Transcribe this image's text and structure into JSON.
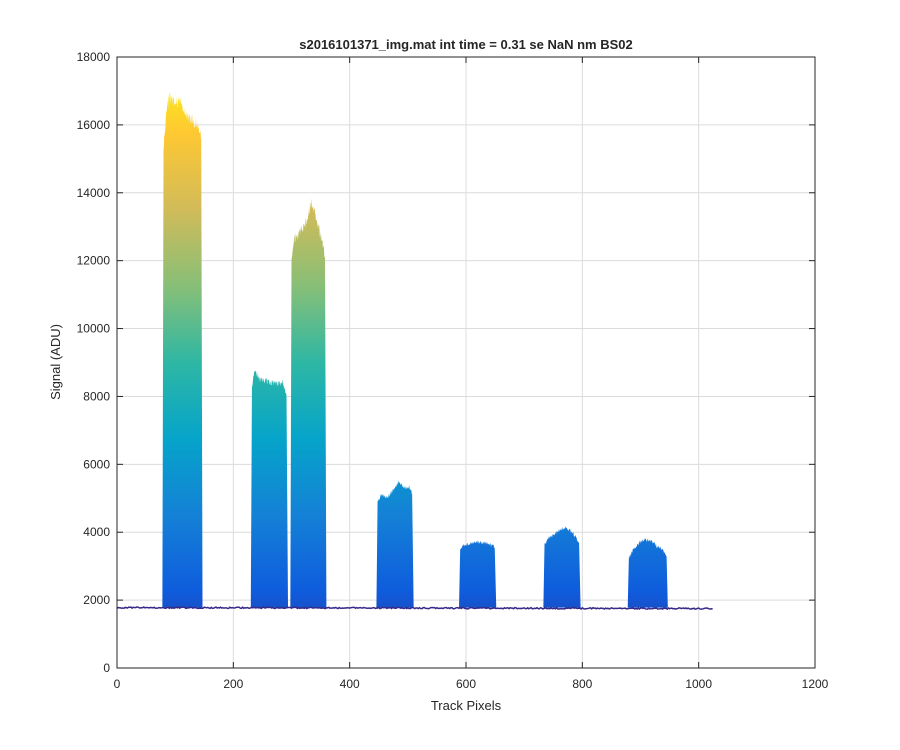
{
  "chart_data": {
    "type": "area",
    "title": "s2016101371_img.mat int time = 0.31 se  NaN nm BS02",
    "xlabel": "Track Pixels",
    "ylabel": "Signal (ADU)",
    "xlim": [
      0,
      1200
    ],
    "ylim": [
      0,
      18000
    ],
    "xticks": [
      "0",
      "200",
      "400",
      "600",
      "800",
      "1000",
      "1200"
    ],
    "yticks": [
      "0",
      "2000",
      "4000",
      "6000",
      "8000",
      "10000",
      "12000",
      "14000",
      "16000",
      "18000"
    ],
    "grid": true,
    "colormap": [
      "#352a87",
      "#0f5cdd",
      "#1481d6",
      "#06a4ca",
      "#2eb7a4",
      "#87bf77",
      "#d1bb59",
      "#fec832",
      "#f9fb0e"
    ],
    "baseline": 1780,
    "x_range": [
      0,
      1024
    ],
    "peaks": [
      {
        "x_start": 80,
        "x_end": 145,
        "max": 17100,
        "profile": [
          [
            80,
            15500
          ],
          [
            85,
            16600
          ],
          [
            90,
            17050
          ],
          [
            100,
            16850
          ],
          [
            110,
            16900
          ],
          [
            120,
            16500
          ],
          [
            130,
            16300
          ],
          [
            140,
            16200
          ],
          [
            145,
            15800
          ]
        ]
      },
      {
        "x_start": 232,
        "x_end": 292,
        "max": 9000,
        "profile": [
          [
            232,
            8300
          ],
          [
            236,
            8900
          ],
          [
            245,
            8600
          ],
          [
            255,
            8550
          ],
          [
            265,
            8500
          ],
          [
            275,
            8450
          ],
          [
            285,
            8500
          ],
          [
            292,
            8100
          ]
        ]
      },
      {
        "x_start": 300,
        "x_end": 358,
        "max": 14000,
        "profile": [
          [
            300,
            12200
          ],
          [
            305,
            12800
          ],
          [
            315,
            13000
          ],
          [
            325,
            13300
          ],
          [
            335,
            13900
          ],
          [
            345,
            13200
          ],
          [
            352,
            12800
          ],
          [
            358,
            12200
          ]
        ]
      },
      {
        "x_start": 448,
        "x_end": 508,
        "max": 5600,
        "profile": [
          [
            448,
            5000
          ],
          [
            455,
            5150
          ],
          [
            465,
            5100
          ],
          [
            475,
            5300
          ],
          [
            485,
            5550
          ],
          [
            495,
            5350
          ],
          [
            502,
            5400
          ],
          [
            508,
            5200
          ]
        ]
      },
      {
        "x_start": 590,
        "x_end": 650,
        "max": 3800,
        "profile": [
          [
            590,
            3600
          ],
          [
            598,
            3700
          ],
          [
            610,
            3750
          ],
          [
            620,
            3770
          ],
          [
            630,
            3750
          ],
          [
            640,
            3720
          ],
          [
            650,
            3600
          ]
        ]
      },
      {
        "x_start": 735,
        "x_end": 795,
        "max": 4250,
        "profile": [
          [
            735,
            3700
          ],
          [
            742,
            3900
          ],
          [
            752,
            4000
          ],
          [
            762,
            4150
          ],
          [
            772,
            4200
          ],
          [
            782,
            4050
          ],
          [
            790,
            3900
          ],
          [
            795,
            3700
          ]
        ]
      },
      {
        "x_start": 880,
        "x_end": 945,
        "max": 3900,
        "profile": [
          [
            880,
            3300
          ],
          [
            888,
            3550
          ],
          [
            898,
            3750
          ],
          [
            908,
            3850
          ],
          [
            918,
            3800
          ],
          [
            928,
            3650
          ],
          [
            938,
            3550
          ],
          [
            945,
            3300
          ]
        ]
      }
    ]
  }
}
